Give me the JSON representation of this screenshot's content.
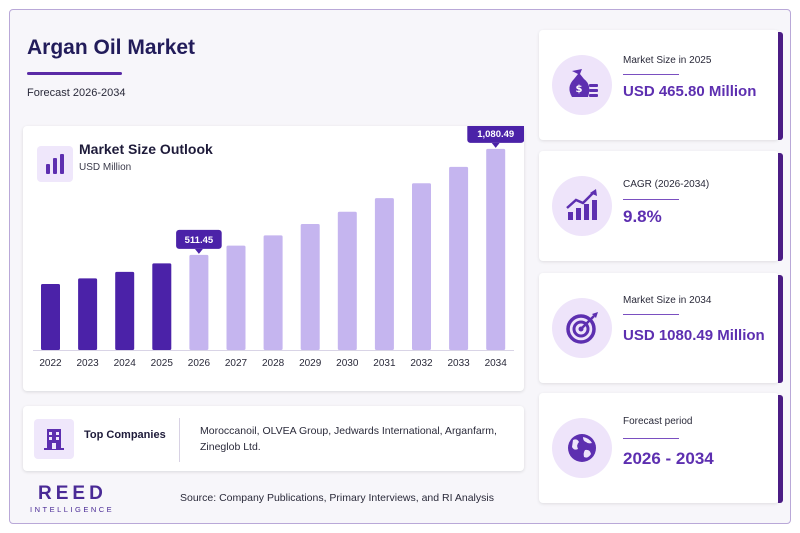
{
  "header": {
    "title": "Argan Oil Market",
    "subtitle": "Forecast 2026-2034"
  },
  "chart_card": {
    "title": "Market Size Outlook",
    "unit": "USD Million"
  },
  "chart_data": {
    "type": "bar",
    "title": "Market Size Outlook",
    "ylabel": "USD Million",
    "categories": [
      "2022",
      "2023",
      "2024",
      "2025",
      "2026",
      "2027",
      "2028",
      "2029",
      "2030",
      "2031",
      "2032",
      "2033",
      "2034"
    ],
    "values": [
      355,
      385,
      420,
      465.8,
      511.45,
      561,
      616,
      677,
      743,
      816,
      896,
      984,
      1080.49
    ],
    "highlighted_labels": [
      {
        "category": "2026",
        "label": "511.45"
      },
      {
        "category": "2034",
        "label": "1,080.49"
      }
    ],
    "series_colors": {
      "historical": "#4b22a8",
      "forecast": "#c5b5ef"
    },
    "ylim": [
      0,
      1150
    ],
    "grid": false
  },
  "companies": {
    "label": "Top Companies",
    "list": "Moroccanoil, OLVEA Group, Jedwards International, Arganfarm, Zineglob Ltd."
  },
  "footer": {
    "logo_main": "REED",
    "logo_sub": "INTELLIGENCE",
    "source": "Source: Company Publications, Primary Interviews, and RI Analysis"
  },
  "stats": [
    {
      "label": "Market Size in 2025",
      "value": "USD 465.80 Million",
      "icon": "money-bag-icon"
    },
    {
      "label": "CAGR (2026-2034)",
      "value": "9.8%",
      "icon": "growth-chart-icon"
    },
    {
      "label": "Market Size in 2034",
      "value": "USD 1080.49 Million",
      "icon": "target-icon"
    },
    {
      "label": "Forecast period",
      "value": "2026 - 2034",
      "icon": "globe-icon"
    }
  ],
  "colors": {
    "accent": "#5d2fb0",
    "dark_bar": "#4b22a8",
    "light_bar": "#c5b5ef",
    "card_edge": "#4b1c84"
  }
}
